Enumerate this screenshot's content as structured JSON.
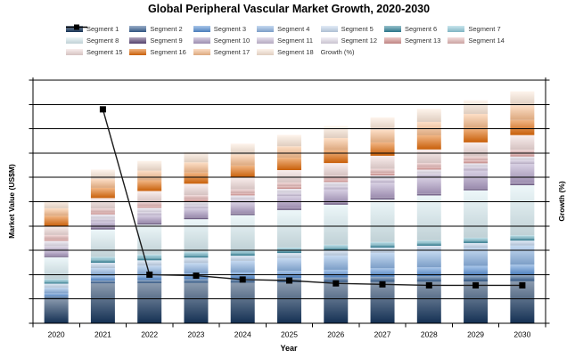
{
  "chart_data": {
    "type": "bar",
    "subtype": "stacked-bar-with-line-overlay",
    "title": "Global Peripheral Vascular Market Growth, 2020-2030",
    "xlabel": "Year",
    "ylabel": "Market Value (US$M)",
    "y2label": "Growth (%)",
    "categories": [
      "2020",
      "2021",
      "2022",
      "2023",
      "2024",
      "2025",
      "2026",
      "2027",
      "2028",
      "2029",
      "2030"
    ],
    "y_axis": {
      "min": 0,
      "max": 1000,
      "gridline_step": 100,
      "grid": true,
      "tick_labels_visible": false
    },
    "y2_axis": {
      "min": 0,
      "max": 25,
      "tick_labels_visible": false
    },
    "legend_position": "top",
    "series": [
      {
        "name": "Segment 1",
        "color": "#17375E",
        "values": [
          103,
          164,
          165,
          166,
          167,
          168,
          169,
          170,
          171,
          172,
          173
        ]
      },
      {
        "name": "Segment 2",
        "color": "#366092",
        "values": [
          8,
          12,
          13,
          15,
          16,
          18,
          19,
          21,
          22,
          24,
          25
        ]
      },
      {
        "name": "Segment 3",
        "color": "#558ED5",
        "values": [
          12,
          18,
          21,
          24,
          26,
          29,
          32,
          35,
          37,
          40,
          43
        ]
      },
      {
        "name": "Segment 4",
        "color": "#8DB4E2",
        "values": [
          24,
          33,
          38,
          43,
          48,
          53,
          59,
          64,
          69,
          74,
          79
        ]
      },
      {
        "name": "Segment 5",
        "color": "#C6D9F0",
        "values": [
          16,
          22,
          22,
          22,
          21,
          21,
          21,
          21,
          20,
          20,
          20
        ]
      },
      {
        "name": "Segment 6",
        "color": "#31849B",
        "values": [
          9,
          12,
          12,
          12,
          12,
          12,
          12,
          12,
          12,
          12,
          12
        ]
      },
      {
        "name": "Segment 7",
        "color": "#92CDDC",
        "values": [
          9,
          12,
          12,
          12,
          11,
          11,
          11,
          11,
          10,
          10,
          10
        ]
      },
      {
        "name": "Segment 8",
        "color": "#DAEEF3",
        "values": [
          91,
          113,
          123,
          134,
          144,
          154,
          165,
          175,
          185,
          195,
          206
        ]
      },
      {
        "name": "Segment 9",
        "color": "#604A7B",
        "values": [
          6,
          8,
          8,
          8,
          8,
          8,
          8,
          8,
          8,
          8,
          8
        ]
      },
      {
        "name": "Segment 10",
        "color": "#B1A0C7",
        "values": [
          24,
          25,
          31,
          37,
          43,
          49,
          55,
          61,
          67,
          73,
          79
        ]
      },
      {
        "name": "Segment 11",
        "color": "#CCC0DA",
        "values": [
          15,
          11,
          12,
          12,
          13,
          14,
          14,
          15,
          16,
          16,
          17
        ]
      },
      {
        "name": "Segment 12",
        "color": "#E4DFEC",
        "values": [
          22,
          18,
          18,
          17,
          17,
          16,
          16,
          15,
          15,
          14,
          14
        ]
      },
      {
        "name": "Segment 13",
        "color": "#D99694",
        "values": [
          7,
          8,
          8,
          9,
          9,
          10,
          10,
          11,
          11,
          12,
          12
        ]
      },
      {
        "name": "Segment 14",
        "color": "#E6B9B8",
        "values": [
          17,
          16,
          16,
          16,
          16,
          16,
          16,
          16,
          16,
          16,
          16
        ]
      },
      {
        "name": "Segment 15",
        "color": "#F2DCDB",
        "values": [
          36,
          43,
          45,
          47,
          49,
          51,
          52,
          54,
          56,
          58,
          60
        ]
      },
      {
        "name": "Segment 16",
        "color": "#E36C0A",
        "values": [
          43,
          42,
          44,
          46,
          49,
          51,
          53,
          55,
          58,
          60,
          62
        ]
      },
      {
        "name": "Segment 17",
        "color": "#FABF8F",
        "values": [
          31,
          37,
          40,
          42,
          45,
          47,
          50,
          52,
          55,
          57,
          60
        ]
      },
      {
        "name": "Segment 18",
        "color": "#FDE9D9",
        "values": [
          31,
          38,
          40,
          42,
          45,
          47,
          49,
          51,
          54,
          56,
          58
        ]
      }
    ],
    "line_series": {
      "name": "Growth (%)",
      "color": "#1A1A1A",
      "marker": "black-square",
      "values": [
        null,
        22,
        5,
        4.9,
        4.5,
        4.4,
        4.1,
        4,
        3.9,
        3.9,
        3.9
      ]
    }
  }
}
